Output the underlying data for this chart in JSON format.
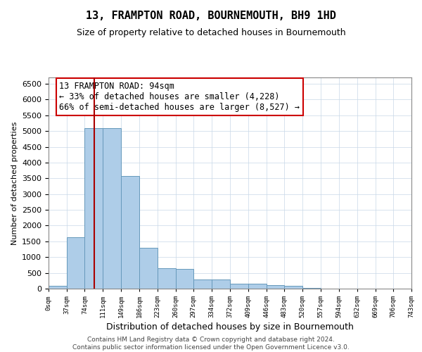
{
  "title": "13, FRAMPTON ROAD, BOURNEMOUTH, BH9 1HD",
  "subtitle": "Size of property relative to detached houses in Bournemouth",
  "xlabel": "Distribution of detached houses by size in Bournemouth",
  "ylabel": "Number of detached properties",
  "footer_line1": "Contains HM Land Registry data © Crown copyright and database right 2024.",
  "footer_line2": "Contains public sector information licensed under the Open Government Licence v3.0.",
  "bar_color": "#aecde8",
  "bar_edge_color": "#6699bb",
  "bar_left_edges": [
    0,
    37,
    74,
    111,
    149,
    186,
    223,
    260,
    297,
    334,
    372,
    409,
    446,
    483,
    520,
    557,
    594,
    632,
    669,
    706
  ],
  "bar_heights": [
    80,
    1640,
    5100,
    5100,
    3580,
    1300,
    640,
    630,
    300,
    300,
    150,
    150,
    110,
    80,
    20,
    10,
    5,
    5,
    5,
    5
  ],
  "bin_width": 37,
  "x_tick_labels": [
    "0sqm",
    "37sqm",
    "74sqm",
    "111sqm",
    "149sqm",
    "186sqm",
    "223sqm",
    "260sqm",
    "297sqm",
    "334sqm",
    "372sqm",
    "409sqm",
    "446sqm",
    "483sqm",
    "520sqm",
    "557sqm",
    "594sqm",
    "632sqm",
    "669sqm",
    "706sqm",
    "743sqm"
  ],
  "ylim": [
    0,
    6700
  ],
  "yticks": [
    0,
    500,
    1000,
    1500,
    2000,
    2500,
    3000,
    3500,
    4000,
    4500,
    5000,
    5500,
    6000,
    6500
  ],
  "vline_x": 94,
  "vline_color": "#aa0000",
  "annotation_text": "13 FRAMPTON ROAD: 94sqm\n← 33% of detached houses are smaller (4,228)\n66% of semi-detached houses are larger (8,527) →",
  "background_color": "#ffffff",
  "grid_color": "#c8d8e8",
  "title_fontsize": 11,
  "subtitle_fontsize": 9,
  "annotation_fontsize": 8.5,
  "ylabel_fontsize": 8,
  "xlabel_fontsize": 9,
  "footer_fontsize": 6.5
}
